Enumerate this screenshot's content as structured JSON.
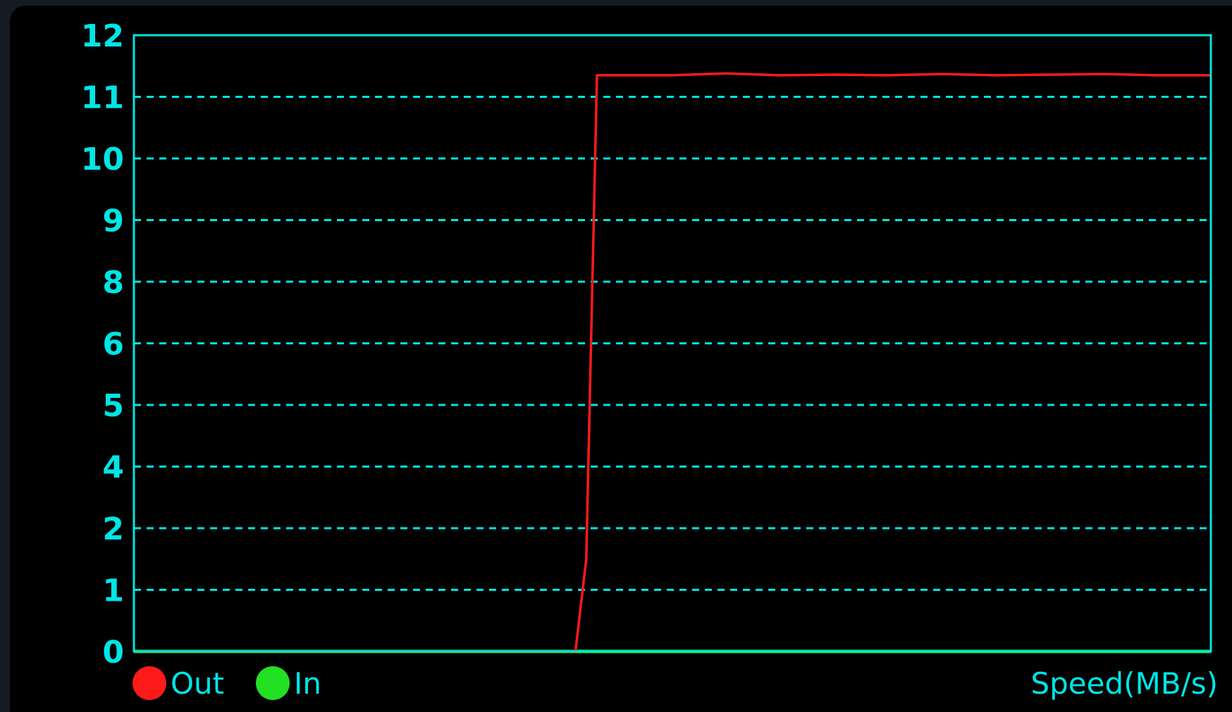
{
  "colors": {
    "axis": "#00e5e5",
    "grid": "#00e5e5",
    "out": "#ff1a1a",
    "in": "#22e022",
    "background": "#000000"
  },
  "chart_data": {
    "type": "line",
    "title": "",
    "xlabel": "",
    "ylabel": "Speed(MB/s)",
    "yticks": [
      "0",
      "1",
      "2",
      "4",
      "5",
      "6",
      "8",
      "9",
      "10",
      "11",
      "12"
    ],
    "xlim": [
      0,
      100
    ],
    "grid": true,
    "legend_position": "bottom-left",
    "series": [
      {
        "name": "Out",
        "color": "#ff1a1a",
        "x": [
          0,
          41,
          42,
          43,
          44,
          46,
          50,
          55,
          60,
          65,
          70,
          75,
          80,
          85,
          90,
          95,
          100
        ],
        "y": [
          0,
          0,
          1.5,
          11.35,
          11.35,
          11.35,
          11.35,
          11.38,
          11.35,
          11.36,
          11.35,
          11.37,
          11.35,
          11.36,
          11.37,
          11.35,
          11.35
        ]
      },
      {
        "name": "In",
        "color": "#22e022",
        "x": [
          0,
          100
        ],
        "y": [
          0,
          0
        ]
      }
    ]
  }
}
